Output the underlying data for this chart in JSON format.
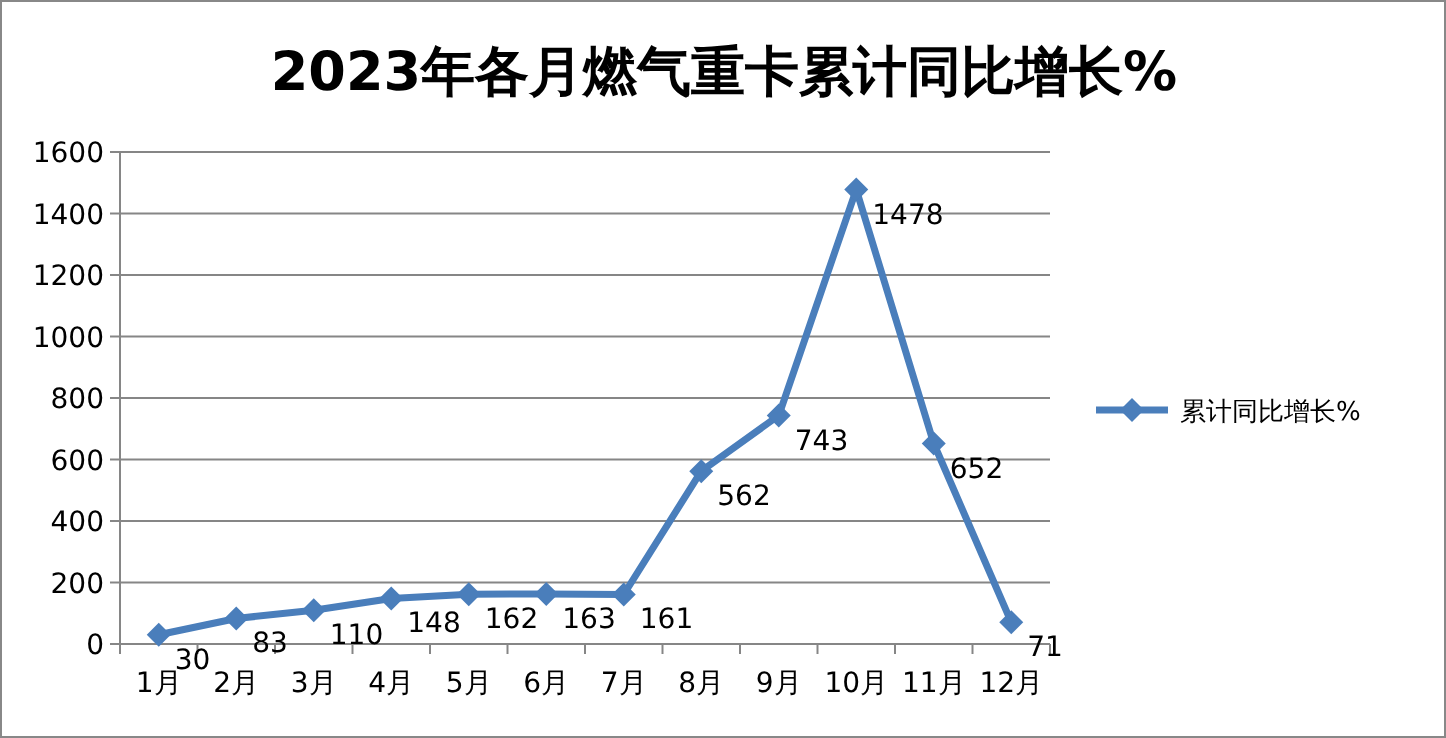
{
  "chart_data": {
    "type": "line",
    "title": "2023年各月燃气重卡累计同比增长%",
    "categories": [
      "1月",
      "2月",
      "3月",
      "4月",
      "5月",
      "6月",
      "7月",
      "8月",
      "9月",
      "10月",
      "11月",
      "12月"
    ],
    "series": [
      {
        "name": "累计同比增长%",
        "color": "#4a7ebb",
        "values": [
          30,
          83,
          110,
          148,
          162,
          163,
          161,
          562,
          743,
          1478,
          652,
          71
        ]
      }
    ],
    "ylim": [
      0,
      1600
    ],
    "yticks": [
      0,
      200,
      400,
      600,
      800,
      1000,
      1200,
      1400,
      1600
    ],
    "grid": "y",
    "legend": "right",
    "marker": "diamond",
    "line_style": "solid",
    "data_labels": true
  }
}
